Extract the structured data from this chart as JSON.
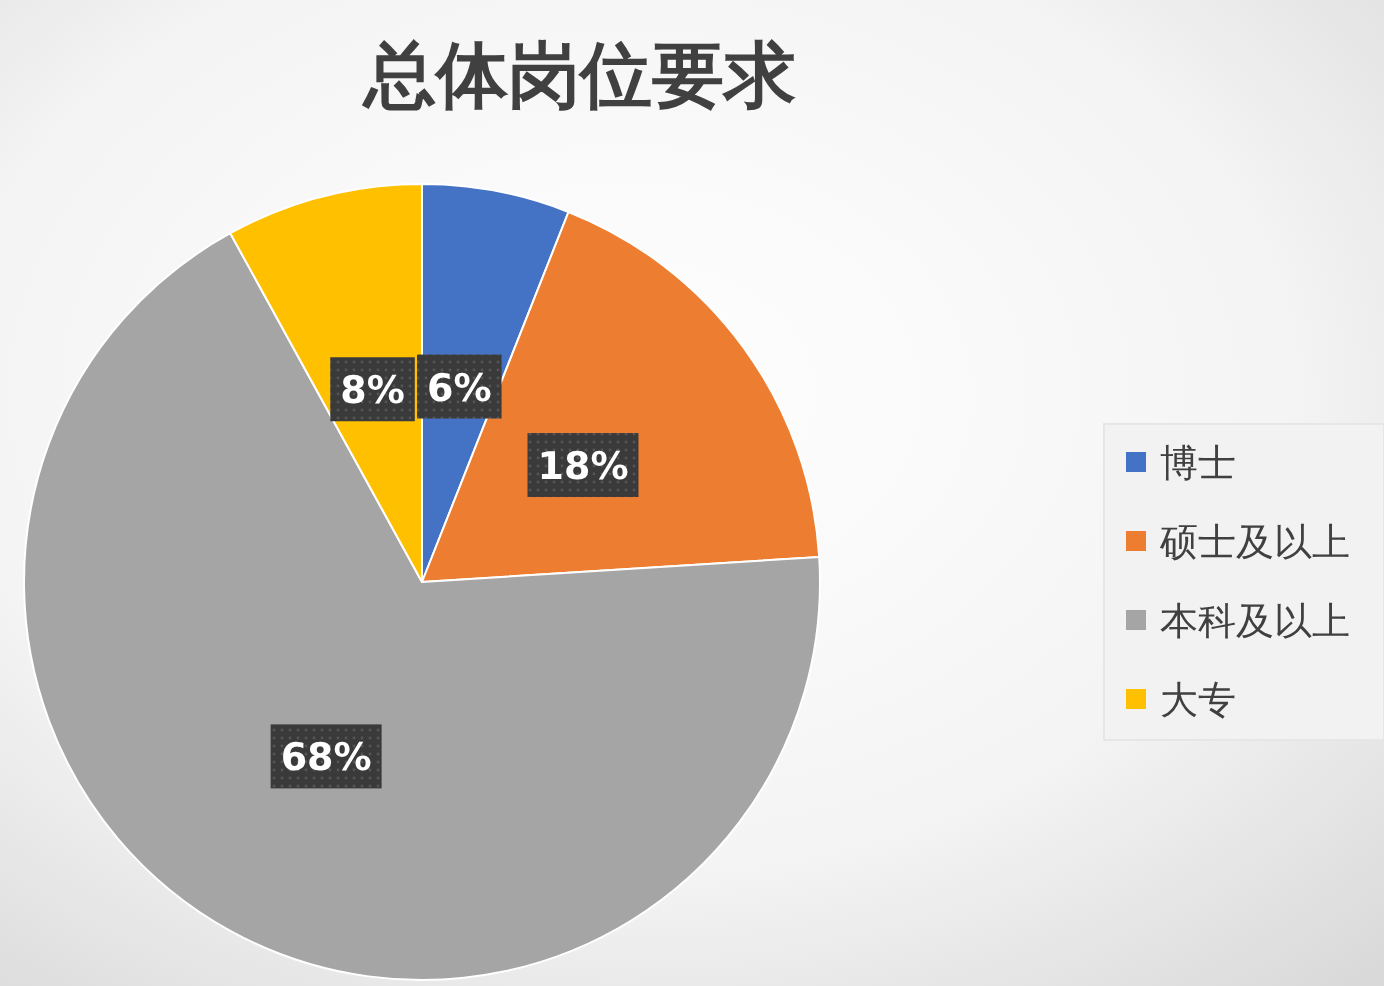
{
  "chart_data": {
    "type": "pie",
    "title": "总体岗位要求",
    "categories": [
      "博士",
      "硕士及以上",
      "本科及以上",
      "大专"
    ],
    "values": [
      6,
      18,
      68,
      8
    ],
    "colors": [
      "#4472c4",
      "#ed7d31",
      "#a5a5a5",
      "#ffc000"
    ],
    "value_labels": [
      "6%",
      "18%",
      "68%",
      "8%"
    ],
    "legend": "right"
  }
}
